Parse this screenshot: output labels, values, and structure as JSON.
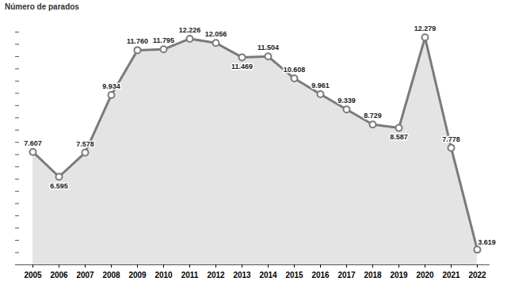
{
  "chart_data": {
    "type": "line",
    "title": "Número de parados",
    "categories": [
      "2005",
      "2006",
      "2007",
      "2008",
      "2009",
      "2010",
      "2011",
      "2012",
      "2013",
      "2014",
      "2015",
      "2016",
      "2017",
      "2018",
      "2019",
      "2020",
      "2021",
      "2022"
    ],
    "values": [
      7607,
      6595,
      7578,
      9934,
      11760,
      11795,
      12226,
      12056,
      11469,
      11504,
      10608,
      9961,
      9339,
      8729,
      8587,
      12279,
      7778,
      3619
    ],
    "value_labels": [
      "7.607",
      "6.595",
      "7.578",
      "9.934",
      "11.760",
      "11.795",
      "12.226",
      "12.056",
      "11.469",
      "11.504",
      "10.608",
      "9.961",
      "9.339",
      "8.729",
      "8.587",
      "12.279",
      "7.778",
      "3.619"
    ],
    "color": "#7a7a7a",
    "ylim": [
      3000,
      12500
    ],
    "yticks": [
      3000,
      3500,
      4000,
      4500,
      5000,
      5500,
      6000,
      6500,
      7000,
      7500,
      8000,
      8500,
      9000,
      9500,
      10000,
      10500,
      11000,
      11500,
      12000,
      12500
    ],
    "grid": false,
    "data_labels": true,
    "tick_labels": "x",
    "marker": "circle"
  }
}
